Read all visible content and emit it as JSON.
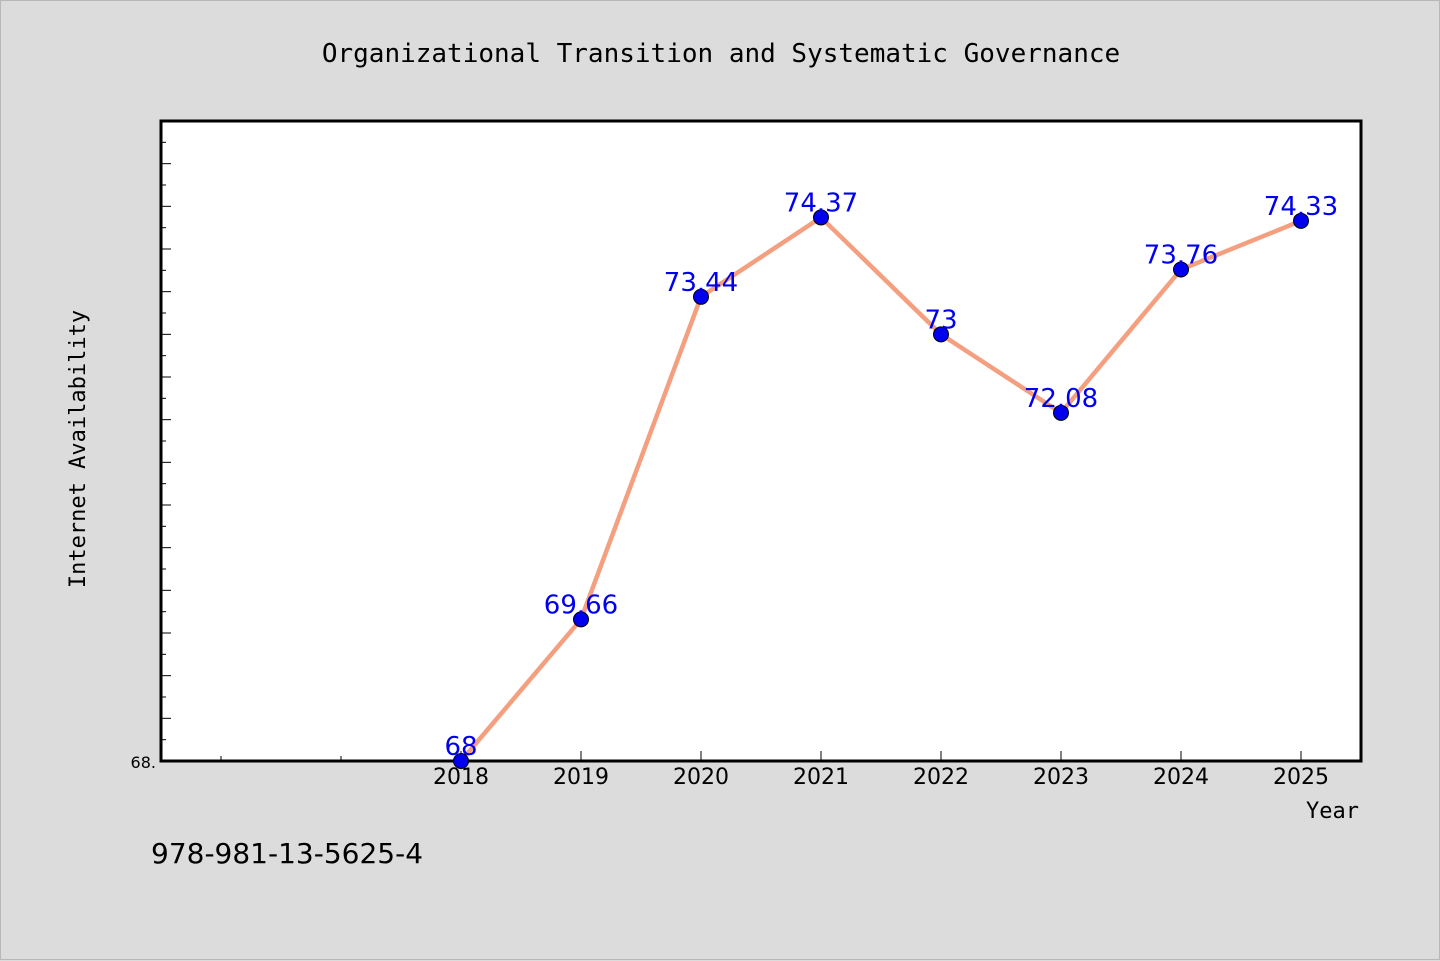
{
  "chart_data": {
    "type": "line",
    "title": "Organizational Transition and Systematic Governance",
    "xlabel": "Year",
    "ylabel": "Internet Availability",
    "categories": [
      "2018",
      "2019",
      "2020",
      "2021",
      "2022",
      "2023",
      "2024",
      "2025"
    ],
    "series": [
      {
        "values": [
          68,
          69.66,
          73.44,
          74.37,
          73,
          72.08,
          73.76,
          74.33
        ],
        "data_labels": [
          "68",
          "69.66",
          "73.44",
          "74.37",
          "73",
          "72.08",
          "73.76",
          "74.33"
        ]
      }
    ],
    "xlim": [
      2015.5,
      2025.5
    ],
    "ylim": [
      68,
      75.5
    ],
    "y_tick_labels": [
      "68."
    ],
    "grid": false,
    "legend": "none",
    "colors": {
      "line": "#f4a080",
      "marker": "#0000ee",
      "marker_edge": "#000000",
      "data_label": "#0000ee",
      "plot_background": "#ffffff",
      "page_background": "#dcdcdc"
    }
  },
  "footnote": "978-981-13-5625-4"
}
